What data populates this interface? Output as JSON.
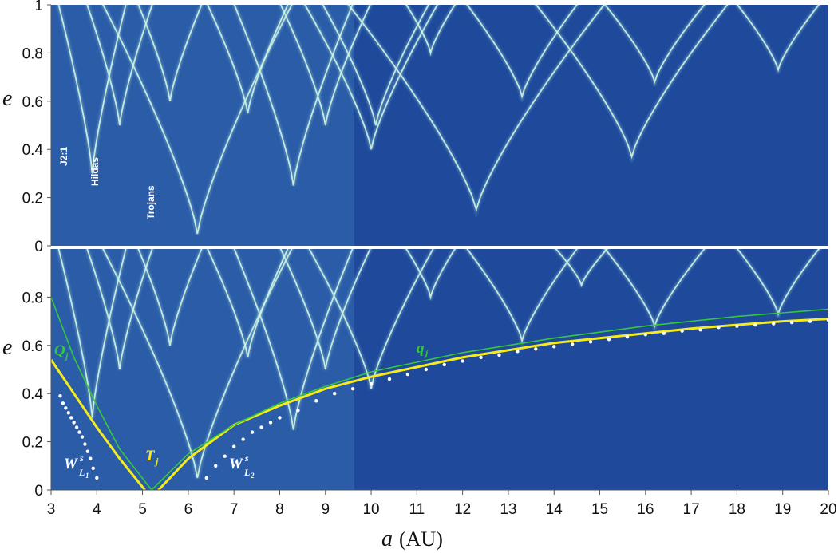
{
  "chart_data": {
    "type": "heatmap",
    "xlabel": "a",
    "xunit": "(AU)",
    "ylabel": "e",
    "xlim": [
      3,
      20
    ],
    "ylim": [
      0,
      1
    ],
    "xticks": [
      "3",
      "4",
      "5",
      "6",
      "7",
      "8",
      "9",
      "10",
      "11",
      "12",
      "13",
      "14",
      "15",
      "16",
      "17",
      "18",
      "19",
      "20"
    ],
    "yticks_top": [
      "0",
      "0.2",
      "0.4",
      "0.6",
      "0.8",
      "1"
    ],
    "yticks_bottom": [
      "0",
      "0.2",
      "0.4",
      "0.6",
      "0.8"
    ],
    "colors": {
      "background": "#1f4a9c",
      "structure": "#d6f2e4",
      "Tj": "#f5ea1c",
      "Qj_qj": "#35c83c",
      "manifold": "#ffffff"
    },
    "panels": [
      {
        "name": "top",
        "annotations": [
          "J2:1",
          "Hildas",
          "Trojans"
        ],
        "resonance_arches": [
          [
            10,
            0.4,
            1.6
          ],
          [
            10.1,
            0.5,
            1.3
          ],
          [
            13.3,
            0.62,
            1.4
          ],
          [
            16.2,
            0.68,
            1.3
          ],
          [
            18.9,
            0.73,
            1.1
          ],
          [
            15.7,
            0.37,
            2.3
          ],
          [
            9.0,
            0.5,
            1.1
          ],
          [
            8.3,
            0.25,
            1.4
          ],
          [
            6.2,
            0.05,
            2.2
          ],
          [
            7.3,
            0.55,
            1.0
          ],
          [
            5.6,
            0.6,
            0.8
          ],
          [
            4.5,
            0.5,
            0.8
          ],
          [
            12.3,
            0.15,
            3.0
          ],
          [
            3.9,
            0.3,
            0.8
          ],
          [
            11.3,
            0.8,
            0.7
          ]
        ]
      },
      {
        "name": "bottom",
        "resonance_arches": [
          [
            10,
            0.42,
            1.5
          ],
          [
            13.3,
            0.62,
            1.4
          ],
          [
            16.2,
            0.68,
            1.3
          ],
          [
            18.9,
            0.73,
            1.1
          ],
          [
            9.0,
            0.5,
            1.1
          ],
          [
            8.3,
            0.25,
            1.4
          ],
          [
            6.2,
            0.05,
            2.2
          ],
          [
            7.3,
            0.55,
            1.0
          ],
          [
            5.6,
            0.6,
            0.8
          ],
          [
            4.5,
            0.5,
            0.8
          ],
          [
            3.9,
            0.3,
            0.8
          ],
          [
            11.3,
            0.8,
            0.7
          ],
          [
            14.6,
            0.85,
            0.8
          ]
        ],
        "curves": [
          {
            "label": "T",
            "sub": "j",
            "color": "#f5ea1c",
            "branches": [
              [
                [
                  3,
                  0.54
                ],
                [
                  3.5,
                  0.4
                ],
                [
                  4,
                  0.26
                ],
                [
                  4.5,
                  0.13
                ],
                [
                  5.05,
                  0.0
                ]
              ],
              [
                [
                  5.35,
                  0.0
                ],
                [
                  6,
                  0.13
                ],
                [
                  7,
                  0.27
                ],
                [
                  8,
                  0.35
                ],
                [
                  9,
                  0.42
                ],
                [
                  10,
                  0.47
                ],
                [
                  11,
                  0.51
                ],
                [
                  12,
                  0.55
                ],
                [
                  13,
                  0.58
                ],
                [
                  14,
                  0.61
                ],
                [
                  15,
                  0.63
                ],
                [
                  16,
                  0.65
                ],
                [
                  17,
                  0.67
                ],
                [
                  18,
                  0.685
                ],
                [
                  19,
                  0.7
                ],
                [
                  20,
                  0.71
                ]
              ]
            ]
          },
          {
            "label": "Q",
            "sub": "j",
            "color": "#35c83c",
            "branches": [
              [
                [
                  3,
                  0.8
                ],
                [
                  3.5,
                  0.55
                ],
                [
                  4,
                  0.35
                ],
                [
                  4.5,
                  0.17
                ],
                [
                  5.2,
                  0.0
                ]
              ]
            ]
          },
          {
            "label": "q",
            "sub": "j",
            "color": "#35c83c",
            "branches": [
              [
                [
                  5.2,
                  0.0
                ],
                [
                  6,
                  0.15
                ],
                [
                  7,
                  0.27
                ],
                [
                  8,
                  0.36
                ],
                [
                  9,
                  0.43
                ],
                [
                  10,
                  0.49
                ],
                [
                  11,
                  0.53
                ],
                [
                  12,
                  0.57
                ],
                [
                  13,
                  0.6
                ],
                [
                  14,
                  0.63
                ],
                [
                  15,
                  0.655
                ],
                [
                  16,
                  0.68
                ],
                [
                  17,
                  0.7
                ],
                [
                  18,
                  0.72
                ],
                [
                  19,
                  0.735
                ],
                [
                  20,
                  0.75
                ]
              ]
            ]
          }
        ],
        "manifolds": [
          {
            "label": "W",
            "sup": "s",
            "sub": "L",
            "subsub": "1",
            "points": [
              [
                3.2,
                0.39
              ],
              [
                3.26,
                0.36
              ],
              [
                3.32,
                0.34
              ],
              [
                3.38,
                0.32
              ],
              [
                3.44,
                0.3
              ],
              [
                3.5,
                0.28
              ],
              [
                3.56,
                0.26
              ],
              [
                3.62,
                0.24
              ],
              [
                3.68,
                0.22
              ],
              [
                3.74,
                0.19
              ],
              [
                3.8,
                0.16
              ],
              [
                3.86,
                0.13
              ],
              [
                3.92,
                0.09
              ],
              [
                4.0,
                0.05
              ]
            ]
          },
          {
            "label": "W",
            "sup": "s",
            "sub": "L",
            "subsub": "2",
            "points": [
              [
                6.4,
                0.05
              ],
              [
                6.6,
                0.1
              ],
              [
                6.8,
                0.14
              ],
              [
                7.0,
                0.18
              ],
              [
                7.2,
                0.21
              ],
              [
                7.4,
                0.24
              ],
              [
                7.6,
                0.26
              ],
              [
                7.8,
                0.28
              ],
              [
                8.0,
                0.3
              ],
              [
                8.4,
                0.33
              ],
              [
                8.8,
                0.37
              ],
              [
                9.2,
                0.4
              ],
              [
                9.6,
                0.42
              ],
              [
                10,
                0.44
              ],
              [
                10.4,
                0.46
              ],
              [
                10.8,
                0.48
              ],
              [
                11.2,
                0.5
              ],
              [
                11.6,
                0.52
              ],
              [
                12,
                0.535
              ],
              [
                12.4,
                0.55
              ],
              [
                12.8,
                0.56
              ],
              [
                13.2,
                0.575
              ],
              [
                13.6,
                0.585
              ],
              [
                14,
                0.595
              ],
              [
                14.4,
                0.605
              ],
              [
                14.8,
                0.615
              ],
              [
                15.2,
                0.625
              ],
              [
                15.6,
                0.635
              ],
              [
                16,
                0.645
              ],
              [
                16.4,
                0.65
              ],
              [
                16.8,
                0.66
              ],
              [
                17.2,
                0.665
              ],
              [
                17.6,
                0.675
              ],
              [
                18,
                0.68
              ],
              [
                18.4,
                0.685
              ],
              [
                18.8,
                0.69
              ],
              [
                19.2,
                0.695
              ],
              [
                19.6,
                0.7
              ],
              [
                20,
                0.705
              ]
            ]
          }
        ]
      }
    ]
  }
}
